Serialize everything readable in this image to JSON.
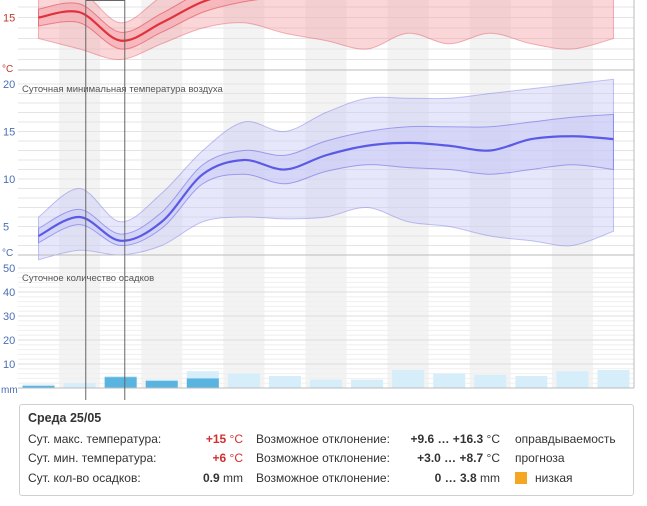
{
  "chart_data": [
    {
      "type": "line",
      "title": "",
      "ylabel": "°C",
      "color": "#e0323c",
      "band_color": "#f4a3a8",
      "yticks": [
        15
      ],
      "ylim": [
        10,
        20
      ],
      "x": [
        0,
        1,
        2,
        3,
        4,
        5,
        6,
        7,
        8,
        9,
        10,
        11,
        12,
        13,
        14
      ],
      "series": [
        {
          "values": [
            15.0,
            15.5,
            12.8,
            14.5,
            16.5,
            17.5,
            17.8,
            18.0,
            18.2,
            18.3,
            18.4,
            18.5,
            18.5,
            18.6,
            18.6
          ]
        }
      ],
      "band_inner": [
        [
          14.2,
          14.5,
          12.0,
          13.6,
          15.5,
          16.5,
          17.0
        ],
        [
          15.8,
          16.3,
          13.6,
          15.4,
          17.5,
          18.5,
          18.6
        ]
      ],
      "band_outer": [
        [
          13.0,
          12.0,
          11.0,
          12.5,
          14.0,
          14.5,
          13.5,
          12.8,
          12.0,
          13.5,
          12.5,
          13.5,
          12.5,
          12.0,
          13.0
        ],
        [
          17.0,
          17.5,
          14.5,
          17.0,
          19.0,
          20.0,
          20.5,
          20.5,
          20.5,
          20.5,
          19.0,
          18.0,
          17.5,
          17.5,
          18.0
        ]
      ]
    },
    {
      "type": "line",
      "title": "Суточная минимальная температура воздуха",
      "ylabel": "°C",
      "color": "#5a5ae6",
      "band_color": "#c9c9f7",
      "yticks": [
        5,
        10,
        15,
        20
      ],
      "ylim": [
        2,
        20
      ],
      "x": [
        0,
        1,
        2,
        3,
        4,
        5,
        6,
        7,
        8,
        9,
        10,
        11,
        12,
        13,
        14
      ],
      "series": [
        {
          "values": [
            4.0,
            6.0,
            3.5,
            5.5,
            10.5,
            12.0,
            11.0,
            12.5,
            13.5,
            13.8,
            13.5,
            13.0,
            14.2,
            14.5,
            14.2
          ]
        }
      ],
      "band_inner": [
        [
          3.3,
          5.2,
          3.0,
          4.8,
          9.5,
          10.5,
          9.5,
          10.8,
          11.5,
          11.2,
          11.0,
          10.5,
          11.0,
          11.5,
          11.0
        ],
        [
          4.8,
          6.8,
          4.2,
          6.5,
          11.5,
          13.0,
          12.5,
          14.0,
          15.0,
          15.5,
          15.5,
          15.5,
          16.0,
          16.5,
          16.8
        ]
      ],
      "band_outer": [
        [
          1.5,
          2.5,
          2.0,
          3.0,
          5.5,
          6.0,
          5.8,
          6.0,
          7.0,
          5.5,
          5.0,
          4.0,
          3.5,
          3.0,
          4.5
        ],
        [
          6.0,
          9.0,
          5.5,
          8.5,
          13.0,
          16.0,
          15.0,
          17.0,
          18.5,
          18.5,
          18.5,
          19.0,
          19.5,
          20.0,
          20.5
        ]
      ]
    },
    {
      "type": "bar",
      "title": "Суточное количество осадков",
      "ylabel": "mm",
      "yticks": [
        10,
        20,
        30,
        40,
        50
      ],
      "ylim": [
        0,
        50
      ],
      "categories": [
        0,
        1,
        2,
        3,
        4,
        5,
        6,
        7,
        8,
        9,
        10,
        11,
        12,
        13,
        14
      ],
      "series": [
        {
          "name": "Осадки (значимые)",
          "color": "#5ab4e0",
          "values": [
            0.9,
            0,
            4.5,
            3.0,
            4.0,
            0,
            0,
            0,
            0,
            0,
            0,
            0,
            0,
            0,
            0
          ]
        },
        {
          "name": "Осадки (фон)",
          "color": "#d6eefa",
          "values": [
            1.5,
            2.0,
            5.0,
            3.5,
            7.0,
            6.0,
            5.0,
            3.5,
            3.5,
            7.5,
            6.0,
            5.5,
            5.0,
            7.0,
            7.5
          ]
        }
      ]
    }
  ],
  "info": {
    "date": "Среда 25/05",
    "rows": [
      {
        "label": "Сут. макс. температура:",
        "value": "+15",
        "unit": " °C",
        "value_color": "red",
        "dev_label": "Возможное отклонение:",
        "range": "+9.6 … +16.3",
        "range_unit": " °C",
        "rel": "оправдываемость"
      },
      {
        "label": "Сут. мин. температура:",
        "value": "+6",
        "unit": " °C",
        "value_color": "red",
        "dev_label": "Возможное отклонение:",
        "range": "+3.0 … +8.7",
        "range_unit": " °C",
        "rel": "прогноза"
      },
      {
        "label": "Сут. кол-во осадков:",
        "value": "0.9",
        "unit": " mm",
        "value_color": "normal",
        "dev_label": "Возможное отклонение:",
        "range": "0 … 3.8",
        "range_unit": " mm",
        "rel": "низкая"
      }
    ],
    "reliability_color": "#f5a623"
  }
}
